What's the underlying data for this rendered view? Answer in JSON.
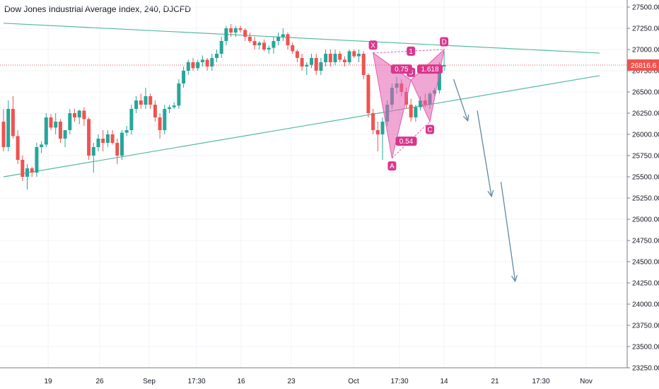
{
  "header": {
    "title": "Dow Jones Industrial Average Index, 240, DJCFD"
  },
  "colors": {
    "up": "#26a69a",
    "down": "#ef5350",
    "pattern": "#e35fb0",
    "trendline": "#55b9a2",
    "arrow": "#5f8aa1",
    "price": "#ef5350"
  },
  "chart_data": {
    "type": "candlestick",
    "y_range": [
      23250,
      27500
    ],
    "y_ticks": [
      "27500.00",
      "27250.00",
      "27000.00",
      "26750.00",
      "26500.00",
      "26250.00",
      "26000.00",
      "25750.00",
      "25500.00",
      "25250.00",
      "25000.00",
      "24750.00",
      "24500.00",
      "24250.00",
      "24000.00",
      "23750.00",
      "23500.00",
      "23250.00"
    ],
    "x_ticks": [
      "19",
      "26",
      "Sep",
      "17:30",
      "16",
      "23",
      "Oct",
      "17:30",
      "14",
      "21",
      "17:30",
      "Nov"
    ],
    "last_price": "26816.6",
    "candles": [
      [
        26150,
        26300,
        25800,
        25850
      ],
      [
        25850,
        26400,
        25800,
        26300
      ],
      [
        26300,
        26450,
        25950,
        25980
      ],
      [
        25980,
        26050,
        25650,
        25700
      ],
      [
        25700,
        25750,
        25450,
        25500
      ],
      [
        25500,
        25650,
        25350,
        25600
      ],
      [
        25600,
        25620,
        25500,
        25550
      ],
      [
        25550,
        25900,
        25500,
        25850
      ],
      [
        25850,
        25920,
        25780,
        25880
      ],
      [
        25880,
        26250,
        25850,
        26200
      ],
      [
        26200,
        26240,
        26050,
        26080
      ],
      [
        26080,
        26250,
        26000,
        26150
      ],
      [
        26150,
        26180,
        25900,
        25950
      ],
      [
        25950,
        26050,
        25850,
        26050
      ],
      [
        26050,
        26300,
        26000,
        26250
      ],
      [
        26250,
        26300,
        26150,
        26200
      ],
      [
        26200,
        26290,
        26120,
        26280
      ],
      [
        26280,
        26320,
        26100,
        26180
      ],
      [
        26180,
        26200,
        25700,
        25750
      ],
      [
        25750,
        25900,
        25550,
        25850
      ],
      [
        25850,
        26000,
        25800,
        25950
      ],
      [
        25950,
        26050,
        25800,
        25900
      ],
      [
        25900,
        26050,
        25850,
        26000
      ],
      [
        26000,
        26050,
        25880,
        25900
      ],
      [
        25900,
        25950,
        25650,
        25750
      ],
      [
        25750,
        26050,
        25700,
        26020
      ],
      [
        26020,
        26100,
        25980,
        26050
      ],
      [
        26050,
        26350,
        26000,
        26300
      ],
      [
        26300,
        26450,
        26250,
        26400
      ],
      [
        26400,
        26480,
        26300,
        26350
      ],
      [
        26350,
        26550,
        26300,
        26450
      ],
      [
        26450,
        26480,
        26300,
        26350
      ],
      [
        26350,
        26400,
        26150,
        26200
      ],
      [
        26200,
        26250,
        25950,
        26050
      ],
      [
        26050,
        26350,
        26000,
        26300
      ],
      [
        26300,
        26350,
        26250,
        26320
      ],
      [
        26320,
        26380,
        26300,
        26340
      ],
      [
        26340,
        26650,
        26300,
        26600
      ],
      [
        26600,
        26800,
        26550,
        26750
      ],
      [
        26750,
        26880,
        26700,
        26850
      ],
      [
        26850,
        26900,
        26750,
        26780
      ],
      [
        26780,
        26880,
        26750,
        26850
      ],
      [
        26850,
        26930,
        26800,
        26880
      ],
      [
        26880,
        26900,
        26750,
        26800
      ],
      [
        26800,
        26950,
        26750,
        26900
      ],
      [
        26900,
        27000,
        26850,
        26950
      ],
      [
        26950,
        27150,
        26900,
        27100
      ],
      [
        27100,
        27280,
        27050,
        27250
      ],
      [
        27250,
        27300,
        27150,
        27200
      ],
      [
        27200,
        27280,
        27150,
        27250
      ],
      [
        27250,
        27280,
        27200,
        27230
      ],
      [
        27230,
        27250,
        27100,
        27150
      ],
      [
        27150,
        27200,
        27080,
        27100
      ],
      [
        27100,
        27150,
        27000,
        27050
      ],
      [
        27050,
        27100,
        27000,
        27080
      ],
      [
        27080,
        27120,
        26980,
        27000
      ],
      [
        27000,
        27050,
        26950,
        27020
      ],
      [
        27020,
        27150,
        26950,
        27100
      ],
      [
        27100,
        27200,
        27050,
        27150
      ],
      [
        27150,
        27250,
        27100,
        27180
      ],
      [
        27180,
        27200,
        27000,
        27050
      ],
      [
        27050,
        27080,
        26950,
        26980
      ],
      [
        26980,
        27000,
        26850,
        26900
      ],
      [
        26900,
        26950,
        26750,
        26800
      ],
      [
        26800,
        26850,
        26700,
        26820
      ],
      [
        26820,
        26950,
        26780,
        26900
      ],
      [
        26900,
        26950,
        26700,
        26750
      ],
      [
        26750,
        26900,
        26700,
        26850
      ],
      [
        26850,
        27000,
        26800,
        26950
      ],
      [
        26950,
        27000,
        26800,
        26850
      ],
      [
        26850,
        27000,
        26820,
        26950
      ],
      [
        26950,
        26980,
        26850,
        26880
      ],
      [
        26880,
        26920,
        26800,
        26850
      ],
      [
        26850,
        27000,
        26820,
        26980
      ],
      [
        26980,
        27000,
        26900,
        26920
      ],
      [
        26920,
        27000,
        26850,
        26950
      ],
      [
        26950,
        26980,
        26650,
        26700
      ],
      [
        26700,
        26720,
        26200,
        26250
      ],
      [
        26250,
        26300,
        26000,
        26050
      ],
      [
        26050,
        26150,
        25800,
        26000
      ],
      [
        26000,
        26200,
        25700,
        26150
      ],
      [
        26150,
        26400,
        26100,
        26350
      ],
      [
        26350,
        26600,
        26300,
        26550
      ],
      [
        26550,
        26680,
        26480,
        26600
      ],
      [
        26600,
        26650,
        26450,
        26500
      ],
      [
        26500,
        26550,
        26300,
        26350
      ],
      [
        26350,
        26420,
        26150,
        26200
      ],
      [
        26200,
        26350,
        26150,
        26320
      ],
      [
        26320,
        26450,
        26280,
        26400
      ],
      [
        26400,
        26480,
        26320,
        26350
      ],
      [
        26350,
        26500,
        26300,
        26480
      ],
      [
        26480,
        26550,
        26450,
        26520
      ],
      [
        26520,
        26850,
        26480,
        26800
      ],
      [
        26800,
        26980,
        26750,
        26817
      ]
    ],
    "trendlines": [
      {
        "from": [
          0,
          27310
        ],
        "to": [
          93,
          27050
        ]
      },
      {
        "from": [
          0,
          25500
        ],
        "to": [
          93,
          26380
        ]
      }
    ],
    "harmonic_pattern": {
      "points": [
        {
          "name": "X",
          "index": 78,
          "value": 26960
        },
        {
          "name": "A",
          "index": 82,
          "value": 25720
        },
        {
          "name": "B",
          "index": 86,
          "value": 26640
        },
        {
          "name": "C",
          "index": 90,
          "value": 26150
        },
        {
          "name": "D",
          "index": 93,
          "value": 27000
        }
      ],
      "ratios": [
        {
          "label": "0.75",
          "index": 84,
          "value": 26770
        },
        {
          "label": "0.54",
          "index": 85,
          "value": 25920
        },
        {
          "label": "1.618",
          "index": 90,
          "value": 26770
        },
        {
          "label": "1",
          "index": 86,
          "value": 26980
        }
      ]
    },
    "projection_arrows": [
      {
        "from": [
          95,
          26650
        ],
        "to": [
          98,
          26160
        ]
      },
      {
        "from": [
          100,
          26280
        ],
        "to": [
          103,
          25270
        ]
      },
      {
        "from": [
          105,
          25440
        ],
        "to": [
          108,
          24270
        ]
      }
    ]
  }
}
